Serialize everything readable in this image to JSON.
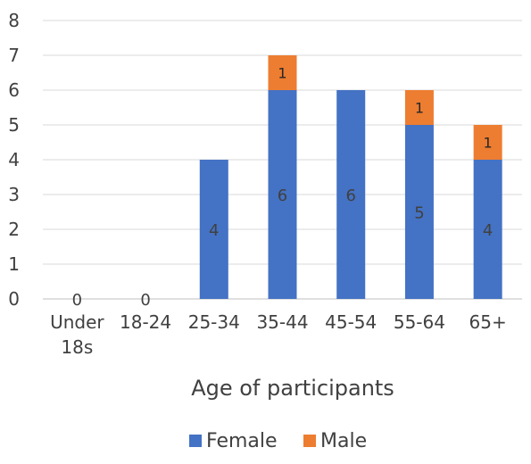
{
  "chart_data": {
    "type": "bar",
    "stacked": true,
    "categories": [
      "Under 18s",
      "18-24",
      "25-34",
      "35-44",
      "45-54",
      "55-64",
      "65+"
    ],
    "category_lines": [
      [
        "Under",
        "18s"
      ],
      [
        "18-24"
      ],
      [
        "25-34"
      ],
      [
        "35-44"
      ],
      [
        "45-54"
      ],
      [
        "55-64"
      ],
      [
        "65+"
      ]
    ],
    "series": [
      {
        "name": "Female",
        "values": [
          0,
          0,
          4,
          6,
          6,
          5,
          4
        ],
        "color": "#4472c4"
      },
      {
        "name": "Male",
        "values": [
          0,
          0,
          0,
          1,
          0,
          1,
          1
        ],
        "color": "#ed7d31"
      }
    ],
    "data_labels": {
      "Female": [
        "0",
        "0",
        "4",
        "6",
        "6",
        "5",
        "4"
      ],
      "Male": [
        "",
        "",
        "",
        "1",
        "",
        "1",
        "1"
      ]
    },
    "xlabel": "Age of participants",
    "ylabel": "",
    "ylim": [
      0,
      8
    ],
    "yticks": [
      0,
      1,
      2,
      3,
      4,
      5,
      6,
      7,
      8
    ],
    "grid": true,
    "legend": "bottom"
  }
}
